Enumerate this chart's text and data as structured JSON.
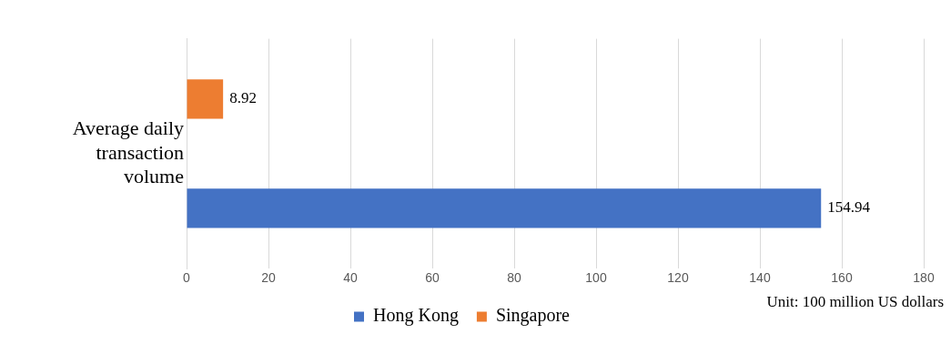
{
  "chart_data": {
    "type": "bar",
    "orientation": "horizontal",
    "categories": [
      "Average daily transaction volume"
    ],
    "series": [
      {
        "name": "Hong Kong",
        "color": "#4472c4",
        "values": [
          154.94
        ]
      },
      {
        "name": "Singapore",
        "color": "#ed7d31",
        "values": [
          8.92
        ]
      }
    ],
    "xlim": [
      0,
      180
    ],
    "xticks": [
      0,
      20,
      40,
      60,
      80,
      100,
      120,
      140,
      160,
      180
    ],
    "grid": "x",
    "legend": "bottom",
    "data_labels": true,
    "annotations": [
      "Unit: 100 million US dollars"
    ]
  }
}
